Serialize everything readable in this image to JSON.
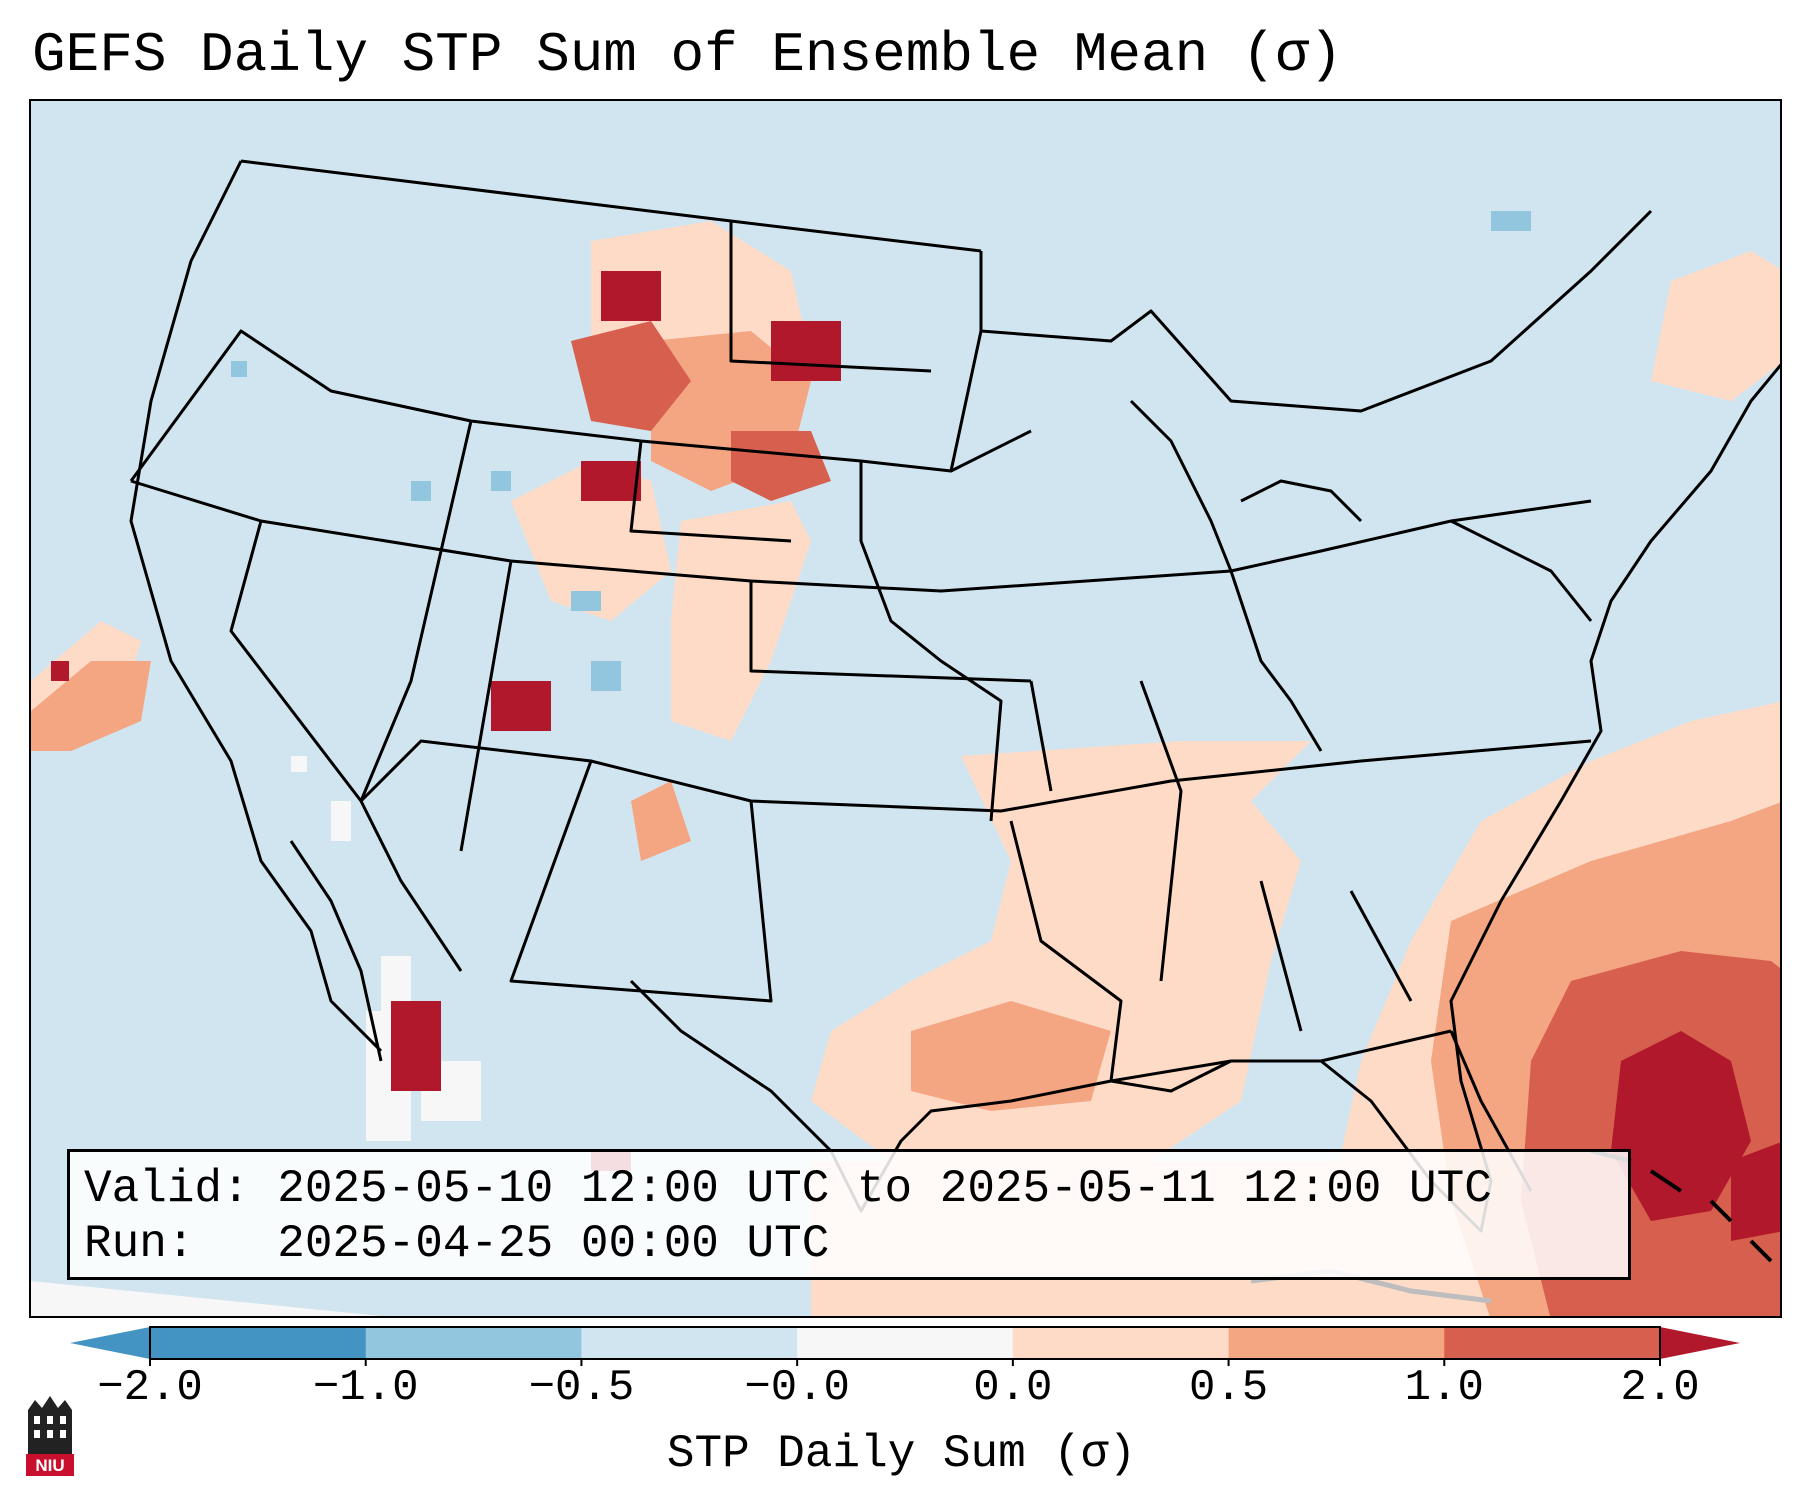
{
  "title": "GEFS Daily STP Sum of Ensemble Mean (σ)",
  "info": {
    "valid_line": "Valid: 2025-05-10 12:00 UTC to 2025-05-11 12:00 UTC",
    "run_line": "Run:   2025-04-25 00:00 UTC"
  },
  "colorbar": {
    "label": "STP Daily Sum (σ)",
    "ticks": [
      "−2.0",
      "−1.0",
      "−0.5",
      "−0.0",
      "0.0",
      "0.5",
      "1.0",
      "2.0"
    ],
    "colors": [
      "#4393c3",
      "#92c5de",
      "#d1e5f0",
      "#f7f7f7",
      "#fddbc7",
      "#f4a582",
      "#d6604d",
      "#b2182b"
    ]
  },
  "logo": {
    "text": "NIU",
    "color": "#c8102e"
  },
  "map": {
    "background_color": "#d1e5f0",
    "hotspots": [
      {
        "region": "northern-plains",
        "level": 2.0
      },
      {
        "region": "central-high-plains",
        "level": 1.0
      },
      {
        "region": "four-corners",
        "level": 2.0
      },
      {
        "region": "gulf-coast",
        "level": 0.5
      },
      {
        "region": "southeast-atlantic",
        "level": 1.0
      },
      {
        "region": "bahamas",
        "level": 2.0
      },
      {
        "region": "gulf-of-california",
        "level": 2.0
      }
    ]
  }
}
